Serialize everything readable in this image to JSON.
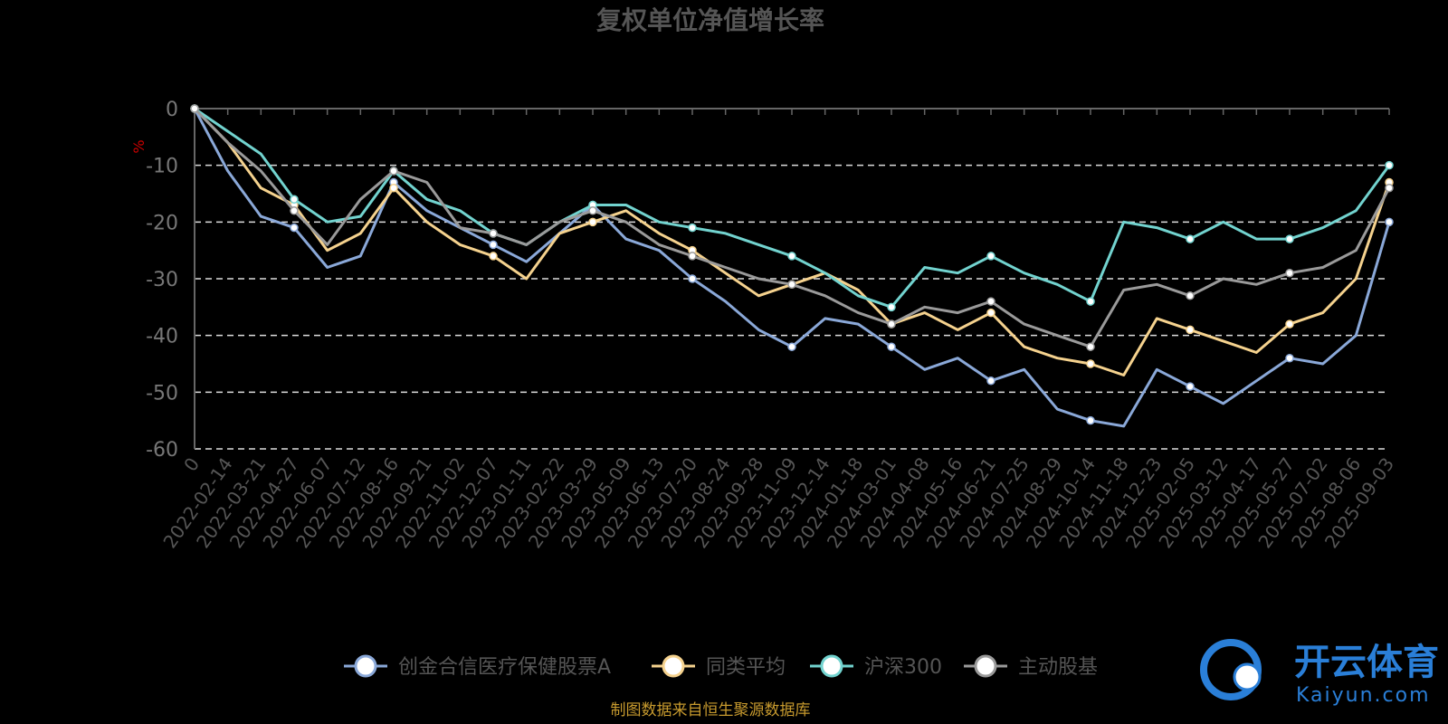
{
  "chart_data": {
    "type": "line",
    "title": "复权单位净值增长率",
    "ylabel": "%",
    "ylim": [
      -60,
      0
    ],
    "yticks": [
      0,
      -10,
      -20,
      -30,
      -40,
      -50,
      -60
    ],
    "grid": "horizontal-dashed",
    "legend_position": "bottom-center",
    "x_labels": [
      "0",
      "2022-02-14",
      "2022-03-21",
      "2022-04-27",
      "2022-06-07",
      "2022-07-12",
      "2022-08-16",
      "2022-09-21",
      "2022-11-02",
      "2022-12-07",
      "2023-01-11",
      "2023-02-22",
      "2023-03-29",
      "2023-05-09",
      "2023-06-13",
      "2023-07-20",
      "2023-08-24",
      "2023-09-28",
      "2023-11-09",
      "2023-12-14",
      "2024-01-18",
      "2024-03-01",
      "2024-04-08",
      "2024-05-16",
      "2024-06-21",
      "2024-07-25",
      "2024-08-29",
      "2024-10-14",
      "2024-11-18",
      "2024-12-23",
      "2025-02-05",
      "2025-03-12",
      "2025-04-17",
      "2025-05-27",
      "2025-07-02",
      "2025-08-06",
      "2025-09-03"
    ],
    "series": [
      {
        "name": "创金合信医疗保健股票A",
        "color": "#8aa8d8",
        "values": [
          0,
          -11,
          -19,
          -21,
          -28,
          -26,
          -13,
          -18,
          -21,
          -24,
          -27,
          -22,
          -17,
          -23,
          -25,
          -30,
          -34,
          -39,
          -42,
          -37,
          -38,
          -42,
          -46,
          -44,
          -48,
          -46,
          -53,
          -55,
          -56,
          -46,
          -49,
          -52,
          -48,
          -44,
          -45,
          -40,
          -20
        ]
      },
      {
        "name": "同类平均",
        "color": "#f5d28e",
        "values": [
          0,
          -6,
          -14,
          -17,
          -25,
          -22,
          -14,
          -20,
          -24,
          -26,
          -30,
          -22,
          -20,
          -18,
          -22,
          -25,
          -29,
          -33,
          -31,
          -29,
          -32,
          -38,
          -36,
          -39,
          -36,
          -42,
          -44,
          -45,
          -47,
          -37,
          -39,
          -41,
          -43,
          -38,
          -36,
          -30,
          -13
        ]
      },
      {
        "name": "沪深300",
        "color": "#72d3cf",
        "values": [
          0,
          -4,
          -8,
          -16,
          -20,
          -19,
          -11,
          -16,
          -18,
          -22,
          -24,
          -20,
          -17,
          -17,
          -20,
          -21,
          -22,
          -24,
          -26,
          -29,
          -33,
          -35,
          -28,
          -29,
          -26,
          -29,
          -31,
          -34,
          -20,
          -21,
          -23,
          -20,
          -23,
          -23,
          -21,
          -18,
          -10
        ]
      },
      {
        "name": "主动股基",
        "color": "#9a9a9a",
        "values": [
          0,
          -6,
          -11,
          -18,
          -24,
          -16,
          -11,
          -13,
          -21,
          -22,
          -24,
          -20,
          -18,
          -20,
          -24,
          -26,
          -28,
          -30,
          -31,
          -33,
          -36,
          -38,
          -35,
          -36,
          -34,
          -38,
          -40,
          -42,
          -32,
          -31,
          -33,
          -30,
          -31,
          -29,
          -28,
          -25,
          -14
        ]
      }
    ]
  },
  "source_note": "制图数据来自恒生聚源数据库",
  "watermark": {
    "cn": "开云体育",
    "en": "Kaiyun.com"
  }
}
